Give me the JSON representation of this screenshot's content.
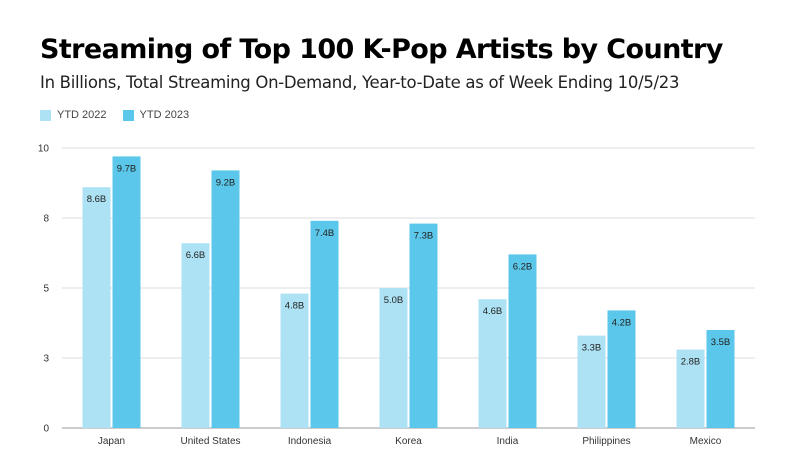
{
  "chart_data": {
    "type": "bar",
    "title": "Streaming of Top 100 K-Pop Artists by Country",
    "subtitle": "In Billions, Total Streaming On-Demand, Year-to-Date as of Week Ending 10/5/23",
    "categories": [
      "Japan",
      "United States",
      "Indonesia",
      "Korea",
      "India",
      "Philippines",
      "Mexico"
    ],
    "series": [
      {
        "name": "YTD 2022",
        "color": "#ade2f4",
        "values": [
          8.6,
          6.6,
          4.8,
          5.0,
          4.6,
          3.3,
          2.8
        ],
        "labels": [
          "8.6B",
          "6.6B",
          "4.8B",
          "5.0B",
          "4.6B",
          "3.3B",
          "2.8B"
        ]
      },
      {
        "name": "YTD 2023",
        "color": "#5bc7ea",
        "values": [
          9.7,
          9.2,
          7.4,
          7.3,
          6.2,
          4.2,
          3.5
        ],
        "labels": [
          "9.7B",
          "9.2B",
          "7.4B",
          "7.3B",
          "6.2B",
          "4.2B",
          "3.5B"
        ]
      }
    ],
    "yticks": [
      0,
      2.5,
      5,
      7.5,
      10
    ],
    "ytick_labels": [
      "0",
      "3",
      "5",
      "8",
      "10"
    ],
    "ylim": [
      0,
      10
    ],
    "xlabel": "",
    "ylabel": "",
    "grid": true,
    "legend_position": "top-left"
  }
}
